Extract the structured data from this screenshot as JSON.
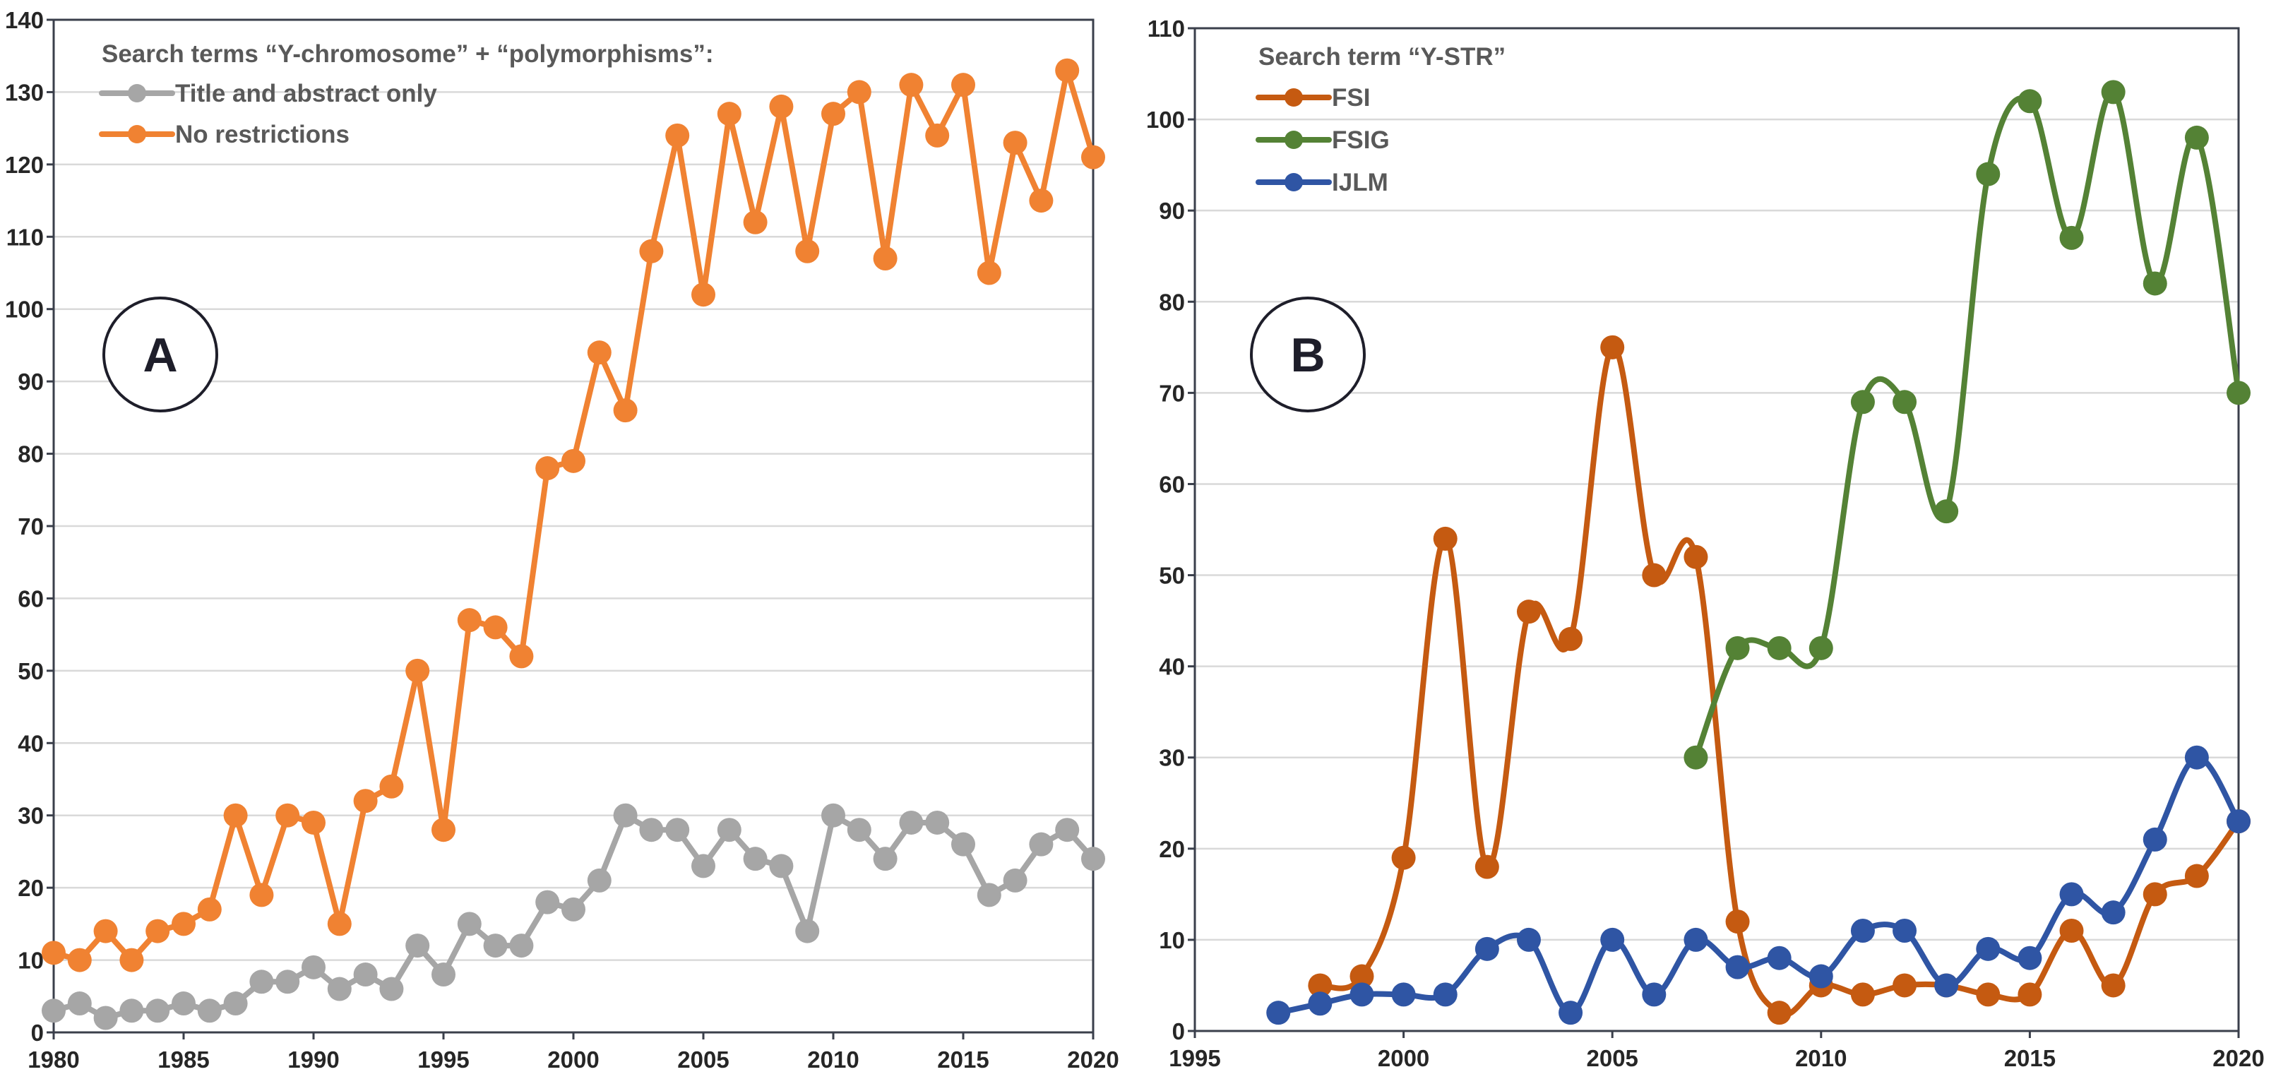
{
  "chart_data": [
    {
      "type": "line",
      "panel_label": "A",
      "legend_title": "Search terms “Y-chromosome” +  “polymorphisms”:",
      "legend_position": "top-left",
      "xlim": [
        1980,
        2020
      ],
      "ylim": [
        0,
        140
      ],
      "xticks": [
        1980,
        1985,
        1990,
        1995,
        2000,
        2005,
        2010,
        2015,
        2020
      ],
      "yticks": [
        0,
        10,
        20,
        30,
        40,
        50,
        60,
        70,
        80,
        90,
        100,
        110,
        120,
        130,
        140
      ],
      "grid": "horizontal",
      "series": [
        {
          "name": "Title and abstract only",
          "color": "#a6a6a6",
          "smooth": false,
          "x": [
            1980,
            1981,
            1982,
            1983,
            1984,
            1985,
            1986,
            1987,
            1988,
            1989,
            1990,
            1991,
            1992,
            1993,
            1994,
            1995,
            1996,
            1997,
            1998,
            1999,
            2000,
            2001,
            2002,
            2003,
            2004,
            2005,
            2006,
            2007,
            2008,
            2009,
            2010,
            2011,
            2012,
            2013,
            2014,
            2015,
            2016,
            2017,
            2018,
            2019,
            2020
          ],
          "y": [
            3,
            4,
            2,
            3,
            3,
            4,
            3,
            4,
            7,
            7,
            9,
            6,
            8,
            6,
            12,
            8,
            15,
            12,
            12,
            18,
            17,
            21,
            30,
            28,
            28,
            23,
            28,
            24,
            23,
            14,
            30,
            28,
            24,
            29,
            29,
            26,
            19,
            21,
            26,
            28,
            24
          ]
        },
        {
          "name": "No restrictions",
          "color": "#f08232",
          "smooth": false,
          "x": [
            1980,
            1981,
            1982,
            1983,
            1984,
            1985,
            1986,
            1987,
            1988,
            1989,
            1990,
            1991,
            1992,
            1993,
            1994,
            1995,
            1996,
            1997,
            1998,
            1999,
            2000,
            2001,
            2002,
            2003,
            2004,
            2005,
            2006,
            2007,
            2008,
            2009,
            2010,
            2011,
            2012,
            2013,
            2014,
            2015,
            2016,
            2017,
            2018,
            2019,
            2020
          ],
          "y": [
            11,
            10,
            14,
            10,
            14,
            15,
            17,
            30,
            19,
            30,
            29,
            15,
            32,
            34,
            50,
            28,
            57,
            56,
            52,
            78,
            79,
            94,
            86,
            108,
            124,
            102,
            127,
            112,
            128,
            108,
            127,
            130,
            107,
            131,
            124,
            131,
            105,
            123,
            115,
            133,
            121
          ]
        }
      ]
    },
    {
      "type": "line",
      "panel_label": "B",
      "legend_title": "Search term “Y-STR”",
      "legend_position": "top-left",
      "xlim": [
        1995,
        2020
      ],
      "ylim": [
        0,
        110
      ],
      "xticks": [
        1995,
        2000,
        2005,
        2010,
        2015,
        2020
      ],
      "yticks": [
        0,
        10,
        20,
        30,
        40,
        50,
        60,
        70,
        80,
        90,
        100,
        110
      ],
      "grid": "horizontal",
      "series": [
        {
          "name": "FSI",
          "color": "#c55a11",
          "smooth": true,
          "x": [
            1998,
            1999,
            2000,
            2001,
            2002,
            2003,
            2004,
            2005,
            2006,
            2007,
            2008,
            2009,
            2010,
            2011,
            2012,
            2013,
            2014,
            2015,
            2016,
            2017,
            2018,
            2019,
            2020
          ],
          "y": [
            5,
            6,
            19,
            54,
            18,
            46,
            43,
            75,
            50,
            52,
            12,
            2,
            5,
            4,
            5,
            5,
            4,
            4,
            11,
            5,
            15,
            17,
            23
          ]
        },
        {
          "name": "FSIG",
          "color": "#548235",
          "smooth": true,
          "x": [
            2007,
            2008,
            2009,
            2010,
            2011,
            2012,
            2013,
            2014,
            2015,
            2016,
            2017,
            2018,
            2019,
            2020
          ],
          "y": [
            30,
            42,
            42,
            42,
            69,
            69,
            57,
            94,
            102,
            87,
            103,
            82,
            98,
            70
          ]
        },
        {
          "name": "IJLM",
          "color": "#2f55a4",
          "smooth": true,
          "x": [
            1997,
            1998,
            1999,
            2000,
            2001,
            2002,
            2003,
            2004,
            2005,
            2006,
            2007,
            2008,
            2009,
            2010,
            2011,
            2012,
            2013,
            2014,
            2015,
            2016,
            2017,
            2018,
            2019,
            2020
          ],
          "y": [
            2,
            3,
            4,
            4,
            4,
            9,
            10,
            2,
            10,
            4,
            10,
            7,
            8,
            6,
            11,
            11,
            5,
            9,
            8,
            15,
            13,
            21,
            30,
            23
          ]
        }
      ]
    }
  ]
}
